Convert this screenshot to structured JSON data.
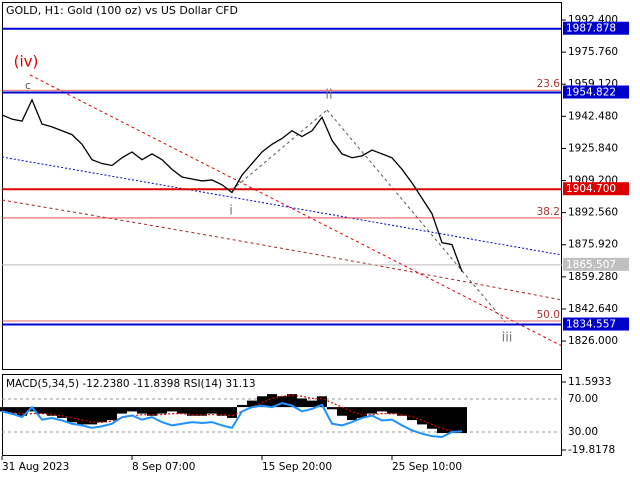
{
  "chart_data": [
    {
      "type": "line",
      "title": "GOLD, H1:  Gold (100 oz) vs US Dollar CFD",
      "color": "#000000",
      "values": [
        1943.2,
        1941.0,
        1940.0,
        1951.0,
        1938.5,
        1937.0,
        1935.0,
        1933.0,
        1928.0,
        1920.0,
        1918.0,
        1917.0,
        1921.0,
        1924.0,
        1920.0,
        1923.0,
        1920.0,
        1915.0,
        1911.0,
        1910.0,
        1909.0,
        1909.5,
        1907.0,
        1903.0,
        1912.0,
        1918.0,
        1924.0,
        1928.0,
        1931.0,
        1935.0,
        1932.0,
        1935.0,
        1942.0,
        1930.0,
        1923.0,
        1921.0,
        1922.0,
        1925.0,
        1923.0,
        1921.0,
        1915.0,
        1908.0,
        1900.0,
        1892.0,
        1877.0,
        1876.0,
        1862.0
      ],
      "ylim": [
        1811.0,
        2001.73
      ],
      "yticks": [
        {
          "value": 1992.4,
          "label": "1992.400"
        },
        {
          "value": 1975.76,
          "label": "1975.760"
        },
        {
          "value": 1959.12,
          "label": "1959.120"
        },
        {
          "value": 1942.48,
          "label": "1942.480"
        },
        {
          "value": 1925.84,
          "label": "1925.840"
        },
        {
          "value": 1909.2,
          "label": "1909.200"
        },
        {
          "value": 1892.56,
          "label": "1892.560"
        },
        {
          "value": 1875.92,
          "label": "1875.920"
        },
        {
          "value": 1859.28,
          "label": "1859.280"
        },
        {
          "value": 1842.64,
          "label": "1842.640"
        },
        {
          "value": 1826.0,
          "label": "1826.000"
        }
      ],
      "levels": [
        {
          "value": 1987.878,
          "label": "1987.878",
          "color": "#0000cc"
        },
        {
          "value": 1954.822,
          "label": "1954.822",
          "color": "#0000cc"
        },
        {
          "value": 1904.7,
          "label": "1904.700",
          "color": "#dd0000"
        },
        {
          "value": 1834.557,
          "label": "1834.557",
          "color": "#0000cc"
        }
      ],
      "current_price": {
        "value": 1865.507,
        "label": "1865.507"
      },
      "fibo": [
        {
          "text": "23.6",
          "price": 1956.0
        },
        {
          "text": "38.2",
          "price": 1889.8
        },
        {
          "text": "50.0",
          "price": 1836.4
        }
      ],
      "waves": [
        "(iv)",
        "c",
        "ii",
        "i",
        "iii"
      ]
    },
    {
      "type": "bar",
      "title": "MACD(5,34,5) -12.2380 -11.8398 RSI(14) 31.13",
      "categories": [
        "31 Aug 2023",
        null,
        null,
        null,
        null,
        null,
        null,
        null,
        null,
        null,
        null,
        null,
        null,
        "8 Sep 07:00",
        null,
        null,
        null,
        null,
        null,
        null,
        null,
        null,
        null,
        null,
        null,
        null,
        "15 Sep 20:00",
        null,
        null,
        null,
        null,
        null,
        null,
        null,
        null,
        null,
        null,
        null,
        null,
        "25 Sep 10:00",
        null,
        null,
        null,
        null,
        null,
        null,
        null
      ],
      "series": [
        {
          "color": "#000000",
          "values": [
            -2,
            -3,
            -4,
            -2,
            -3,
            -4,
            -5,
            -7,
            -8,
            -8,
            -7,
            -6,
            -3,
            -2,
            -3,
            -4,
            -3,
            -2,
            -3,
            -4,
            -4,
            -3,
            -4,
            -5,
            1,
            3,
            5,
            6,
            5,
            6,
            4,
            3,
            5,
            -1,
            -4,
            -6,
            -5,
            -3,
            -2,
            -3,
            -4,
            -6,
            -8,
            -10,
            -12,
            -12,
            -12
          ]
        },
        {
          "color": "#dd0000",
          "values": [
            -2,
            -2.5,
            -3,
            -3,
            -3,
            -3.5,
            -4,
            -5,
            -6,
            -7,
            -7,
            -6.5,
            -5,
            -4,
            -3.5,
            -3.5,
            -3.5,
            -3,
            -3,
            -3.5,
            -3.5,
            -3.5,
            -3.5,
            -4,
            -2,
            0,
            2,
            4,
            5,
            5.5,
            5,
            4,
            4,
            2,
            0,
            -2,
            -3.5,
            -3.5,
            -3,
            -3,
            -3.5,
            -4.5,
            -6,
            -8,
            -10,
            -11,
            -11.8
          ]
        },
        {
          "color": "#1e90ff",
          "axis": "y2",
          "values": [
            55,
            52,
            48,
            60,
            45,
            47,
            44,
            40,
            38,
            35,
            37,
            40,
            48,
            50,
            45,
            48,
            42,
            38,
            40,
            42,
            41,
            42,
            38,
            35,
            55,
            60,
            62,
            60,
            65,
            62,
            55,
            58,
            63,
            40,
            38,
            42,
            47,
            50,
            44,
            45,
            38,
            32,
            28,
            25,
            24,
            30,
            31
          ]
        }
      ],
      "ylim": [
        -22.59,
        14.83
      ],
      "yticks": [
        11.5933,
        -19.8178
      ],
      "y2lim": [
        1,
        99
      ],
      "y2ticks": [
        {
          "value": 70,
          "label": "70.00"
        },
        {
          "value": 30,
          "label": "30.00"
        }
      ]
    }
  ]
}
